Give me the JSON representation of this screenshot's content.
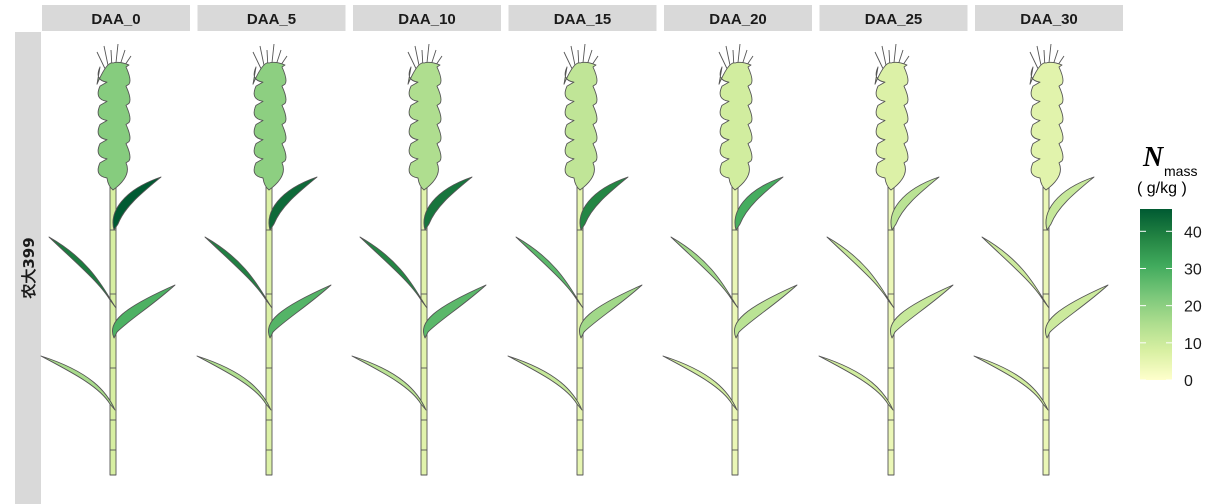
{
  "chart_data": {
    "type": "heatmap",
    "facet_labels": [
      "DAA_0",
      "DAA_5",
      "DAA_10",
      "DAA_15",
      "DAA_20",
      "DAA_25",
      "DAA_30"
    ],
    "row_label": "农大399",
    "organs": [
      "ear",
      "flag_leaf",
      "leaf_2",
      "leaf_3",
      "leaf_4",
      "stem"
    ],
    "values": {
      "DAA_0": {
        "ear": 21,
        "flag_leaf": 46,
        "leaf_2": 40,
        "leaf_3": 29,
        "leaf_4": 16,
        "stem": 8
      },
      "DAA_5": {
        "ear": 20,
        "flag_leaf": 43,
        "leaf_2": 39,
        "leaf_3": 28,
        "leaf_4": 15,
        "stem": 7
      },
      "DAA_10": {
        "ear": 15,
        "flag_leaf": 41,
        "leaf_2": 38,
        "leaf_3": 27,
        "leaf_4": 13,
        "stem": 6
      },
      "DAA_15": {
        "ear": 12,
        "flag_leaf": 38,
        "leaf_2": 27,
        "leaf_3": 17,
        "leaf_4": 11,
        "stem": 5
      },
      "DAA_20": {
        "ear": 9,
        "flag_leaf": 30,
        "leaf_2": 17,
        "leaf_3": 13,
        "leaf_4": 9,
        "stem": 4
      },
      "DAA_25": {
        "ear": 7,
        "flag_leaf": 13,
        "leaf_2": 11,
        "leaf_3": 11,
        "leaf_4": 9,
        "stem": 4
      },
      "DAA_30": {
        "ear": 6,
        "flag_leaf": 11,
        "leaf_2": 10,
        "leaf_3": 10,
        "leaf_4": 9,
        "stem": 4
      }
    },
    "legend": {
      "title_symbol": "N",
      "title_subscript": "mass",
      "unit": "( g/kg )",
      "ticks": [
        0,
        10,
        20,
        30,
        40
      ],
      "range": [
        0,
        46
      ],
      "colors": [
        "#ffffcc",
        "#d9f0a3",
        "#addd8e",
        "#78c679",
        "#41ab5d",
        "#238443",
        "#005a32"
      ]
    },
    "colors": {
      "strip_bg": "#d9d9d9",
      "outline": "#555555"
    }
  }
}
